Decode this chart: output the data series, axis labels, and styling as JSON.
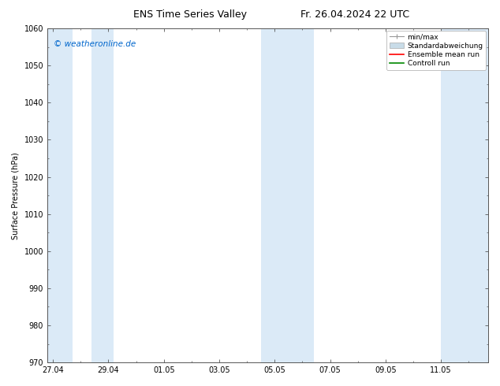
{
  "title_left": "ENS Time Series Valley",
  "title_right": "Fr. 26.04.2024 22 UTC",
  "ylabel": "Surface Pressure (hPa)",
  "ylim": [
    970,
    1060
  ],
  "yticks": [
    970,
    980,
    990,
    1000,
    1010,
    1020,
    1030,
    1040,
    1050,
    1060
  ],
  "xtick_labels": [
    "27.04",
    "29.04",
    "01.05",
    "03.05",
    "05.05",
    "07.05",
    "09.05",
    "11.05"
  ],
  "watermark": "© weatheronline.de",
  "watermark_color": "#0066cc",
  "bg_color": "#ffffff",
  "shaded_band_color": "#dbeaf7",
  "legend_labels": [
    "min/max",
    "Standardabweichung",
    "Ensemble mean run",
    "Controll run"
  ],
  "legend_colors": [
    "#999999",
    "#c8dce8",
    "#ff0000",
    "#008800"
  ],
  "font_size_title": 9,
  "font_size_axis": 7,
  "font_size_tick": 7,
  "font_size_legend": 6.5,
  "font_size_watermark": 7.5
}
